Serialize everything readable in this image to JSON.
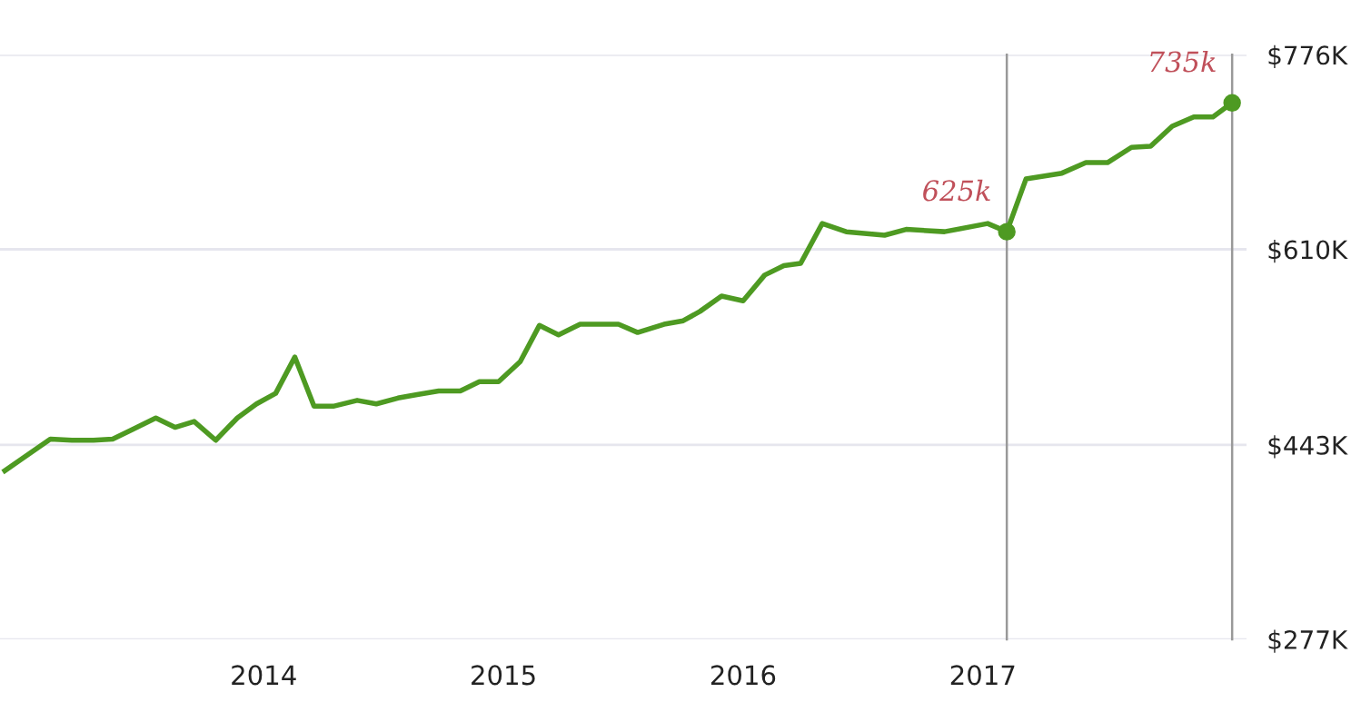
{
  "chart_data": {
    "type": "line",
    "x": [
      2012.92,
      2013.11,
      2013.2,
      2013.29,
      2013.37,
      2013.45,
      2013.55,
      2013.63,
      2013.71,
      2013.8,
      2013.89,
      2013.97,
      2014.05,
      2014.13,
      2014.21,
      2014.29,
      2014.39,
      2014.47,
      2014.56,
      2014.64,
      2014.73,
      2014.82,
      2014.9,
      2014.98,
      2015.07,
      2015.15,
      2015.23,
      2015.32,
      2015.48,
      2015.56,
      2015.67,
      2015.75,
      2015.82,
      2015.91,
      2016.0,
      2016.09,
      2016.17,
      2016.24,
      2016.33,
      2016.43,
      2016.59,
      2016.68,
      2016.84,
      2017.02,
      2017.1,
      2017.18,
      2017.33,
      2017.43,
      2017.52,
      2017.62,
      2017.7,
      2017.79,
      2017.88,
      2017.96,
      2018.04
    ],
    "series": [
      {
        "color": "#4e9a22",
        "values": [
          421,
          448,
          447,
          447,
          448,
          456,
          466,
          458,
          463,
          447,
          466,
          478,
          487,
          518,
          476,
          476,
          481,
          478,
          483,
          486,
          489,
          489,
          497,
          497,
          514,
          545,
          537,
          546,
          546,
          539,
          546,
          549,
          557,
          570,
          566,
          588,
          596,
          598,
          632,
          625,
          622,
          627,
          625,
          632,
          625,
          670,
          675,
          684,
          684,
          697,
          698,
          715,
          723,
          723,
          735
        ]
      }
    ],
    "xlim": [
      2012.9,
      2018.1
    ],
    "xticks": [
      2014,
      2015,
      2016,
      2017
    ],
    "ylim": [
      277,
      776
    ],
    "yticks": [
      {
        "value": 277,
        "label": "$277K"
      },
      {
        "value": 443,
        "label": "$443K"
      },
      {
        "value": 610,
        "label": "$610K"
      },
      {
        "value": 776,
        "label": "$776K"
      }
    ],
    "grid": "y",
    "ref_lines": [
      {
        "axis": "x",
        "value": 2017.1,
        "color": "#999999"
      },
      {
        "axis": "x",
        "value": 2018.04,
        "color": "#999999"
      }
    ],
    "annotations": [
      {
        "text": "625k",
        "x": 2017.1,
        "y": 625
      },
      {
        "text": "735k",
        "x": 2018.04,
        "y": 735
      }
    ]
  }
}
